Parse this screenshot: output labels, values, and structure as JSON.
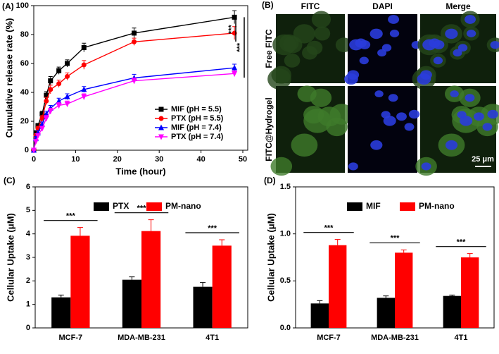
{
  "chart_data": [
    {
      "type": "line",
      "panel_label": "(A)",
      "x_label": "Time (hour)",
      "y_label": "Cumulative release rate (%)",
      "x": [
        0,
        0.5,
        1,
        2,
        3,
        4,
        6,
        8,
        12,
        24,
        48
      ],
      "xlim": [
        0,
        50
      ],
      "xticks": [
        0,
        10,
        20,
        30,
        40,
        50
      ],
      "ylim": [
        0,
        100
      ],
      "yticks": [
        0,
        20,
        40,
        60,
        80,
        100
      ],
      "legend": "lower right",
      "series": [
        {
          "name": "MIF (pH = 5.5)",
          "color": "#000000",
          "marker": "square",
          "values": [
            0,
            12,
            17,
            25,
            38,
            48,
            55,
            60,
            71,
            81,
            92
          ],
          "errors": [
            0,
            1.5,
            1.5,
            2,
            2.5,
            3,
            2.5,
            2.5,
            3,
            3.5,
            4.5
          ]
        },
        {
          "name": "PTX (pH = 5.5)",
          "color": "#ff0000",
          "marker": "circle",
          "values": [
            0,
            10,
            15,
            22,
            34,
            42,
            46,
            51,
            59,
            75,
            81
          ],
          "errors": [
            0,
            1.5,
            1.5,
            2,
            2.5,
            3,
            2.5,
            2.5,
            3,
            2.5,
            4.5
          ]
        },
        {
          "name": "MIF (pH = 7.4)",
          "color": "#0000ff",
          "marker": "triangle-up",
          "values": [
            0,
            8,
            12,
            18,
            25,
            29,
            34,
            37,
            42,
            50,
            57
          ],
          "errors": [
            0,
            1.5,
            1.5,
            1.5,
            2,
            2,
            2,
            2,
            2,
            2.5,
            2.5
          ]
        },
        {
          "name": "PTX (pH = 7.4)",
          "color": "#ff00ff",
          "marker": "triangle-down",
          "values": [
            0,
            6,
            10,
            15,
            22,
            27,
            31,
            32,
            37,
            48,
            53
          ],
          "errors": [
            0,
            1.5,
            1.5,
            1.5,
            2,
            2,
            2,
            2,
            2,
            2,
            2
          ]
        }
      ],
      "annotations": [
        "***",
        "***"
      ]
    },
    {
      "type": "bar",
      "panel_label": "(C)",
      "y_label": "Cellular Uptake (μM)",
      "categories": [
        "MCF-7",
        "MDA-MB-231",
        "4T1"
      ],
      "ylim": [
        0,
        6
      ],
      "yticks": [
        0,
        1,
        2,
        3,
        4,
        5,
        6
      ],
      "legend": "upper center",
      "series": [
        {
          "name": "PTX",
          "color": "#000000",
          "values": [
            1.3,
            2.05,
            1.75
          ],
          "errors": [
            0.1,
            0.12,
            0.18
          ]
        },
        {
          "name": "PM-nano",
          "color": "#ff0000",
          "values": [
            3.92,
            4.12,
            3.5
          ],
          "errors": [
            0.35,
            0.48,
            0.25
          ]
        }
      ],
      "annotations": [
        "***",
        "***",
        "***"
      ]
    },
    {
      "type": "bar",
      "panel_label": "(D)",
      "y_label": "Cellular Uptake (μM)",
      "categories": [
        "MCF-7",
        "MDA-MB-231",
        "4T1"
      ],
      "ylim": [
        0,
        1.5
      ],
      "yticks": [
        {
          "value": 0,
          "label": "0.0"
        },
        0.5,
        {
          "value": 1,
          "label": "1.0"
        },
        1.5
      ],
      "legend": "upper center",
      "series": [
        {
          "name": "MIF",
          "color": "#000000",
          "values": [
            0.26,
            0.32,
            0.34
          ],
          "errors": [
            0.03,
            0.02,
            0.01
          ]
        },
        {
          "name": "PM-nano",
          "color": "#ff0000",
          "values": [
            0.88,
            0.8,
            0.75
          ],
          "errors": [
            0.06,
            0.03,
            0.04
          ]
        }
      ],
      "annotations": [
        "***",
        "***",
        "***"
      ]
    }
  ],
  "image_panel": {
    "panel_label": "(B)",
    "columns": [
      "FITC",
      "DAPI",
      "Merge"
    ],
    "rows": [
      "Free FITC",
      "FITC@Hydrogel"
    ],
    "scale_bar": "25 μm"
  }
}
